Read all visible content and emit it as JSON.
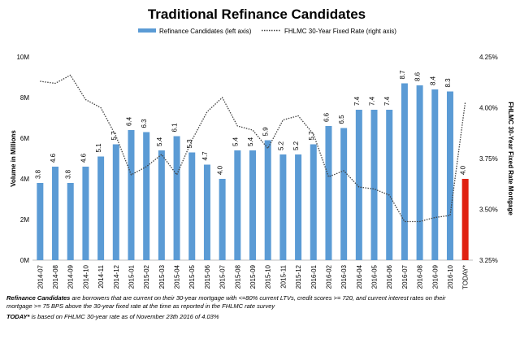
{
  "chart_data": {
    "type": "bar",
    "title": "Traditional Refinance Candidates",
    "categories": [
      "2014-07",
      "2014-08",
      "2014-09",
      "2014-10",
      "2014-11",
      "2014-12",
      "2015-01",
      "2015-02",
      "2015-03",
      "2015-04",
      "2015-05",
      "2015-06",
      "2015-07",
      "2015-08",
      "2015-09",
      "2015-10",
      "2015-11",
      "2015-12",
      "2016-01",
      "2016-02",
      "2016-03",
      "2016-04",
      "2016-05",
      "2016-06",
      "2016-07",
      "2016-08",
      "2016-09",
      "2016-10",
      "TODAY*"
    ],
    "series": [
      {
        "name": "Refinance Candidates (left axis)",
        "type": "bar",
        "axis": "left",
        "values": [
          3.8,
          4.6,
          3.8,
          4.6,
          5.1,
          5.7,
          6.4,
          6.3,
          5.4,
          6.1,
          5.3,
          4.7,
          4.0,
          5.4,
          5.4,
          5.9,
          5.2,
          5.2,
          5.7,
          6.6,
          6.5,
          7.4,
          7.4,
          7.4,
          8.7,
          8.6,
          8.4,
          8.3,
          4.0
        ],
        "labels": [
          "3.8",
          "4.6",
          "3.8",
          "4.6",
          "5.1",
          "5.7",
          "6.4",
          "6.3",
          "5.4",
          "6.1",
          "5.3",
          "4.7",
          "4.0",
          "5.4",
          "5.4",
          "5.9",
          "5.2",
          "5.2",
          "5.7",
          "6.6",
          "6.5",
          "7.4",
          "7.4",
          "7.4",
          "8.7",
          "8.6",
          "8.4",
          "8.3",
          "4.0"
        ],
        "color": "#5b9bd5",
        "highlight_color": "#e02010"
      },
      {
        "name": "FHLMC 30-Year Fixed Rate (right axis)",
        "type": "line",
        "axis": "right",
        "style": "dotted",
        "color": "#404040",
        "values": [
          4.13,
          4.12,
          4.16,
          4.04,
          4.0,
          3.86,
          3.67,
          3.71,
          3.77,
          3.67,
          3.84,
          3.98,
          4.05,
          3.91,
          3.89,
          3.8,
          3.94,
          3.96,
          3.87,
          3.66,
          3.69,
          3.61,
          3.6,
          3.57,
          3.44,
          3.44,
          3.46,
          3.47,
          4.03
        ]
      }
    ],
    "y_left": {
      "label": "Volume in Millions",
      "min": 0,
      "max": 10,
      "ticks": [
        0,
        2,
        4,
        6,
        8,
        10
      ],
      "tick_labels": [
        "0M",
        "2M",
        "4M",
        "6M",
        "8M",
        "10M"
      ]
    },
    "y_right": {
      "label": "FHLMC 30-Year Fixed Rate Mortgage",
      "min": 3.25,
      "max": 4.25,
      "ticks": [
        3.25,
        3.5,
        3.75,
        4.0,
        4.25
      ],
      "tick_labels": [
        "3.25%",
        "3.50%",
        "3.75%",
        "4.00%",
        "4.25%"
      ]
    },
    "legend_position": "top-center",
    "grid": false
  },
  "footnotes": {
    "line1_bold": "Refinance Candidates",
    "line1_rest": " are borrowers that are current on their 30-year mortgage with <=80% current LTVs, credit scores >= 720, and current interest rates on their",
    "line2": "mortgage >= 75 BPS above the 30-year fixed rate at the time as reported in the FHLMC rate survey",
    "line3_bold": "TODAY*",
    "line3_rest": " is based on FHLMC 30-year rate as of November 23th 2016 of 4.03%"
  }
}
